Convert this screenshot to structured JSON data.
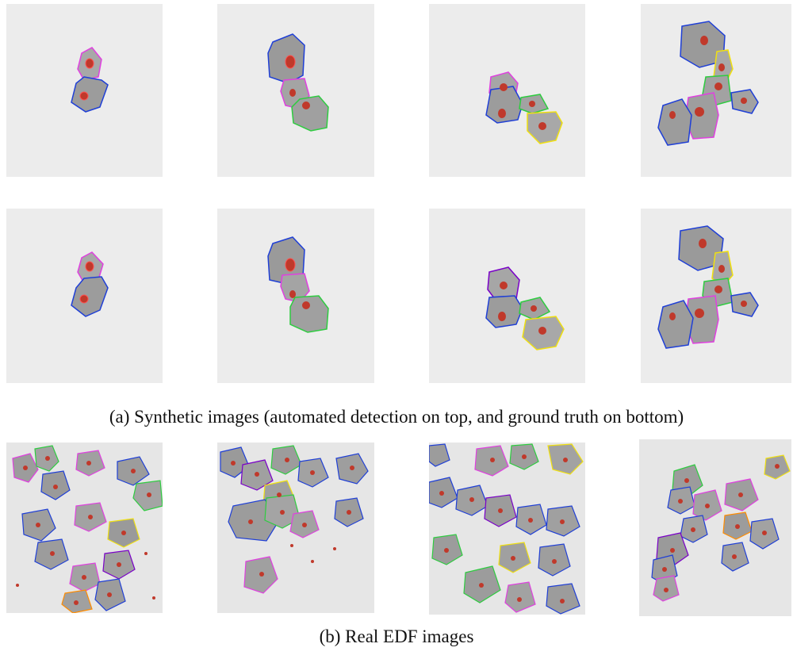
{
  "captions": {
    "a": "(a) Synthetic images (automated detection on top, and ground truth on bottom)",
    "b": "(b) Real EDF images"
  },
  "colors": {
    "background": "#ececec",
    "cell_fill": "#9a9a9a",
    "nucleus": "#c0392b",
    "contours": [
      "#1f3fd6",
      "#e040e0",
      "#2ecc40",
      "#f0e010",
      "#ff8c00",
      "#7a00c8"
    ]
  },
  "figure": {
    "rows": [
      "synthetic-detection",
      "synthetic-ground-truth",
      "real-edf"
    ],
    "panels_per_row": 4
  }
}
